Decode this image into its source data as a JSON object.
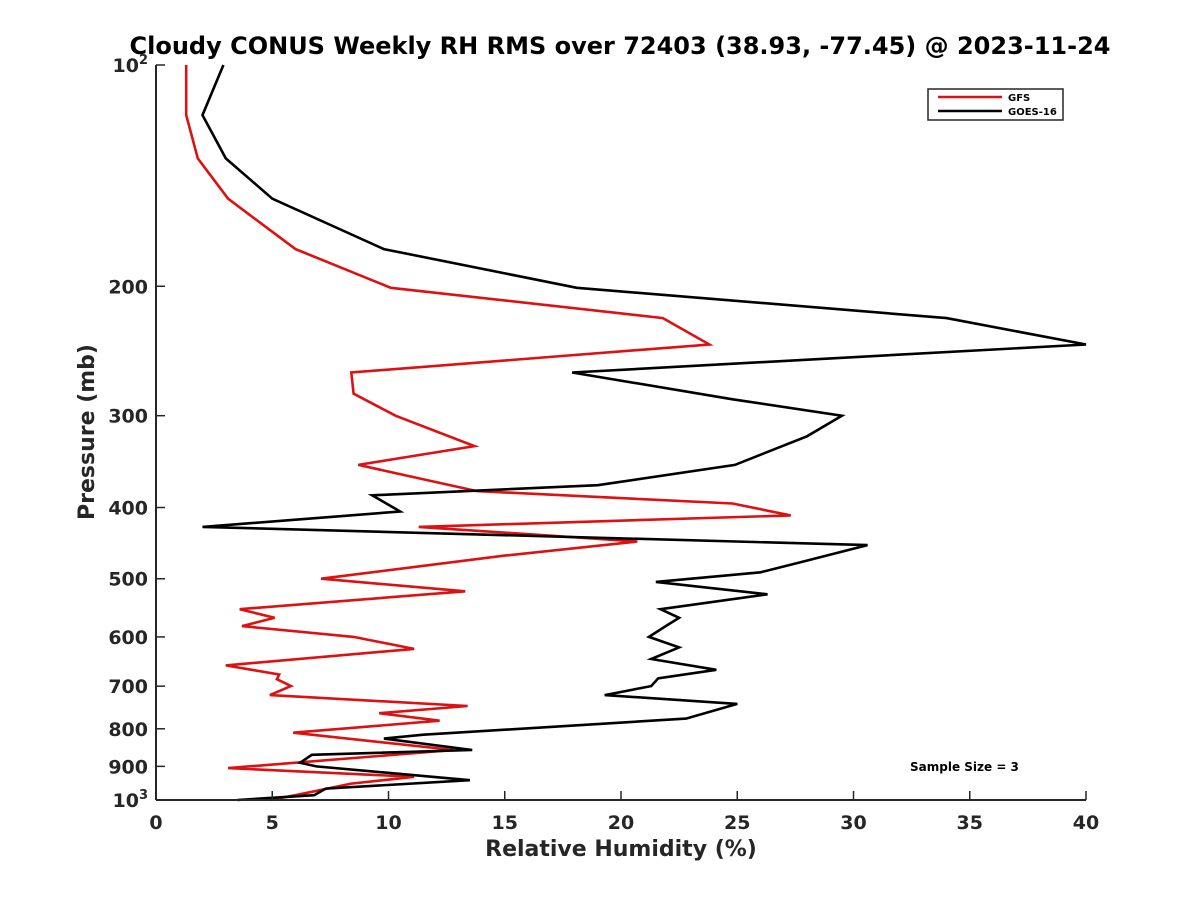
{
  "chart_data": {
    "type": "line",
    "title": "Cloudy CONUS Weekly RH RMS over 72403 (38.93, -77.45) @ 2023-11-24",
    "xlabel": "Relative Humidity (%)",
    "ylabel": "Pressure (mb)",
    "xlim": [
      0,
      40
    ],
    "ylim": [
      100,
      1000
    ],
    "y_scale": "log",
    "y_reversed": true,
    "grid": false,
    "legend_position": "top-right",
    "x_ticks": [
      "0",
      "5",
      "10",
      "15",
      "20",
      "25",
      "30",
      "35",
      "40"
    ],
    "x_tick_values": [
      0,
      5,
      10,
      15,
      20,
      25,
      30,
      35,
      40
    ],
    "y_ticks": [
      {
        "value": 100,
        "base": "10",
        "exp": "2"
      },
      {
        "value": 200,
        "base": "200",
        "exp": ""
      },
      {
        "value": 300,
        "base": "300",
        "exp": ""
      },
      {
        "value": 400,
        "base": "400",
        "exp": ""
      },
      {
        "value": 500,
        "base": "500",
        "exp": ""
      },
      {
        "value": 600,
        "base": "600",
        "exp": ""
      },
      {
        "value": 700,
        "base": "700",
        "exp": ""
      },
      {
        "value": 800,
        "base": "800",
        "exp": ""
      },
      {
        "value": 900,
        "base": "900",
        "exp": ""
      },
      {
        "value": 1000,
        "base": "10",
        "exp": "3"
      }
    ],
    "annotation": "Sample Size = 3",
    "series": [
      {
        "name": "GFS",
        "color": "#dd1111",
        "points": [
          [
            1.3,
            100
          ],
          [
            1.3,
            117
          ],
          [
            1.8,
            134
          ],
          [
            3.1,
            152
          ],
          [
            6.0,
            178
          ],
          [
            10.1,
            201
          ],
          [
            21.8,
            221
          ],
          [
            23.8,
            240
          ],
          [
            8.4,
            262
          ],
          [
            8.5,
            280
          ],
          [
            10.3,
            300
          ],
          [
            13.7,
            330
          ],
          [
            8.7,
            350
          ],
          [
            13.8,
            380
          ],
          [
            24.8,
            395
          ],
          [
            27.3,
            410
          ],
          [
            11.3,
            425
          ],
          [
            20.7,
            445
          ],
          [
            15.0,
            465
          ],
          [
            7.1,
            500
          ],
          [
            13.3,
            520
          ],
          [
            3.6,
            550
          ],
          [
            5.1,
            565
          ],
          [
            3.7,
            580
          ],
          [
            8.5,
            600
          ],
          [
            11.1,
            623
          ],
          [
            3.0,
            656
          ],
          [
            5.3,
            675
          ],
          [
            5.2,
            685
          ],
          [
            5.8,
            700
          ],
          [
            4.9,
            720
          ],
          [
            13.4,
            745
          ],
          [
            9.6,
            762
          ],
          [
            12.2,
            780
          ],
          [
            5.9,
            810
          ],
          [
            12.8,
            855
          ],
          [
            3.1,
            905
          ],
          [
            11.1,
            930
          ],
          [
            8.4,
            950
          ],
          [
            6.0,
            985
          ],
          [
            4.9,
            1000
          ]
        ]
      },
      {
        "name": "GOES-16",
        "color": "#000000",
        "points": [
          [
            2.9,
            100
          ],
          [
            2.0,
            117
          ],
          [
            3.0,
            134
          ],
          [
            5.0,
            152
          ],
          [
            9.8,
            178
          ],
          [
            18.1,
            201
          ],
          [
            34.0,
            221
          ],
          [
            40.0,
            240
          ],
          [
            17.9,
            262
          ],
          [
            24.8,
            285
          ],
          [
            29.5,
            300
          ],
          [
            28.0,
            320
          ],
          [
            24.9,
            350
          ],
          [
            19.0,
            373
          ],
          [
            9.3,
            385
          ],
          [
            10.5,
            405
          ],
          [
            2.0,
            425
          ],
          [
            30.6,
            450
          ],
          [
            27.7,
            475
          ],
          [
            26.0,
            490
          ],
          [
            21.5,
            505
          ],
          [
            26.3,
            525
          ],
          [
            21.7,
            550
          ],
          [
            22.5,
            565
          ],
          [
            22.0,
            578
          ],
          [
            21.2,
            600
          ],
          [
            22.5,
            620
          ],
          [
            21.3,
            643
          ],
          [
            24.1,
            665
          ],
          [
            21.6,
            683
          ],
          [
            21.3,
            700
          ],
          [
            19.3,
            720
          ],
          [
            25.0,
            740
          ],
          [
            22.8,
            775
          ],
          [
            11.5,
            815
          ],
          [
            9.8,
            825
          ],
          [
            13.6,
            855
          ],
          [
            6.7,
            868
          ],
          [
            6.2,
            890
          ],
          [
            6.9,
            900
          ],
          [
            13.5,
            940
          ],
          [
            7.3,
            965
          ],
          [
            6.8,
            985
          ],
          [
            3.5,
            1000
          ]
        ]
      }
    ]
  }
}
